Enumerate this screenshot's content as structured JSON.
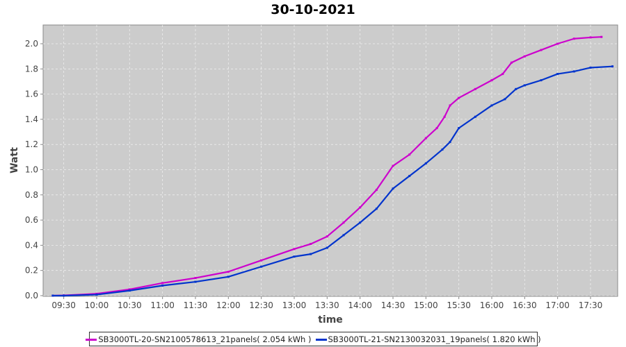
{
  "chart_data": {
    "type": "line",
    "title": "30-10-2021",
    "xlabel": "time",
    "ylabel": "Watt",
    "ylim": [
      0,
      2.15
    ],
    "xlim": [
      "09:11",
      "18:08"
    ],
    "grid": true,
    "legend_placement": "bottom",
    "x_ticks": [
      "09:30",
      "10:00",
      "10:30",
      "11:00",
      "11:30",
      "12:00",
      "12:30",
      "13:00",
      "13:30",
      "14:00",
      "14:30",
      "15:00",
      "15:30",
      "16:00",
      "16:30",
      "17:00",
      "17:30"
    ],
    "y_ticks": [
      "0.0",
      "0.2",
      "0.4",
      "0.6",
      "0.8",
      "1.0",
      "1.2",
      "1.4",
      "1.6",
      "1.8",
      "2.0"
    ],
    "series": [
      {
        "name": "SB3000TL-20-SN2100578613_21panels( 2.054 kWh )",
        "color": "#cc00cc",
        "x": [
          "09:20",
          "09:30",
          "10:00",
          "10:30",
          "11:00",
          "11:30",
          "12:00",
          "12:30",
          "13:00",
          "13:15",
          "13:30",
          "13:45",
          "14:00",
          "14:15",
          "14:30",
          "14:45",
          "15:00",
          "15:10",
          "15:17",
          "15:22",
          "15:30",
          "15:45",
          "16:00",
          "16:10",
          "16:18",
          "16:30",
          "16:45",
          "17:00",
          "17:15",
          "17:30",
          "17:40"
        ],
        "y": [
          0,
          0.002,
          0.015,
          0.05,
          0.1,
          0.14,
          0.19,
          0.28,
          0.37,
          0.41,
          0.47,
          0.58,
          0.7,
          0.84,
          1.03,
          1.12,
          1.25,
          1.33,
          1.42,
          1.51,
          1.57,
          1.64,
          1.71,
          1.76,
          1.85,
          1.9,
          1.95,
          2.0,
          2.04,
          2.05,
          2.054
        ]
      },
      {
        "name": "SB3000TL-21-SN2130032031_19panels( 1.820 kWh )",
        "color": "#0033cc",
        "x": [
          "09:20",
          "09:30",
          "10:00",
          "10:30",
          "11:00",
          "11:30",
          "12:00",
          "12:30",
          "13:00",
          "13:15",
          "13:30",
          "13:45",
          "14:00",
          "14:15",
          "14:30",
          "14:45",
          "15:00",
          "15:15",
          "15:22",
          "15:30",
          "15:45",
          "16:00",
          "16:12",
          "16:22",
          "16:30",
          "16:45",
          "17:00",
          "17:15",
          "17:30",
          "17:50"
        ],
        "y": [
          0,
          0.0,
          0.008,
          0.04,
          0.08,
          0.11,
          0.15,
          0.23,
          0.31,
          0.33,
          0.38,
          0.48,
          0.58,
          0.69,
          0.85,
          0.95,
          1.05,
          1.16,
          1.22,
          1.33,
          1.42,
          1.51,
          1.56,
          1.64,
          1.67,
          1.71,
          1.76,
          1.78,
          1.81,
          1.82
        ]
      }
    ]
  }
}
